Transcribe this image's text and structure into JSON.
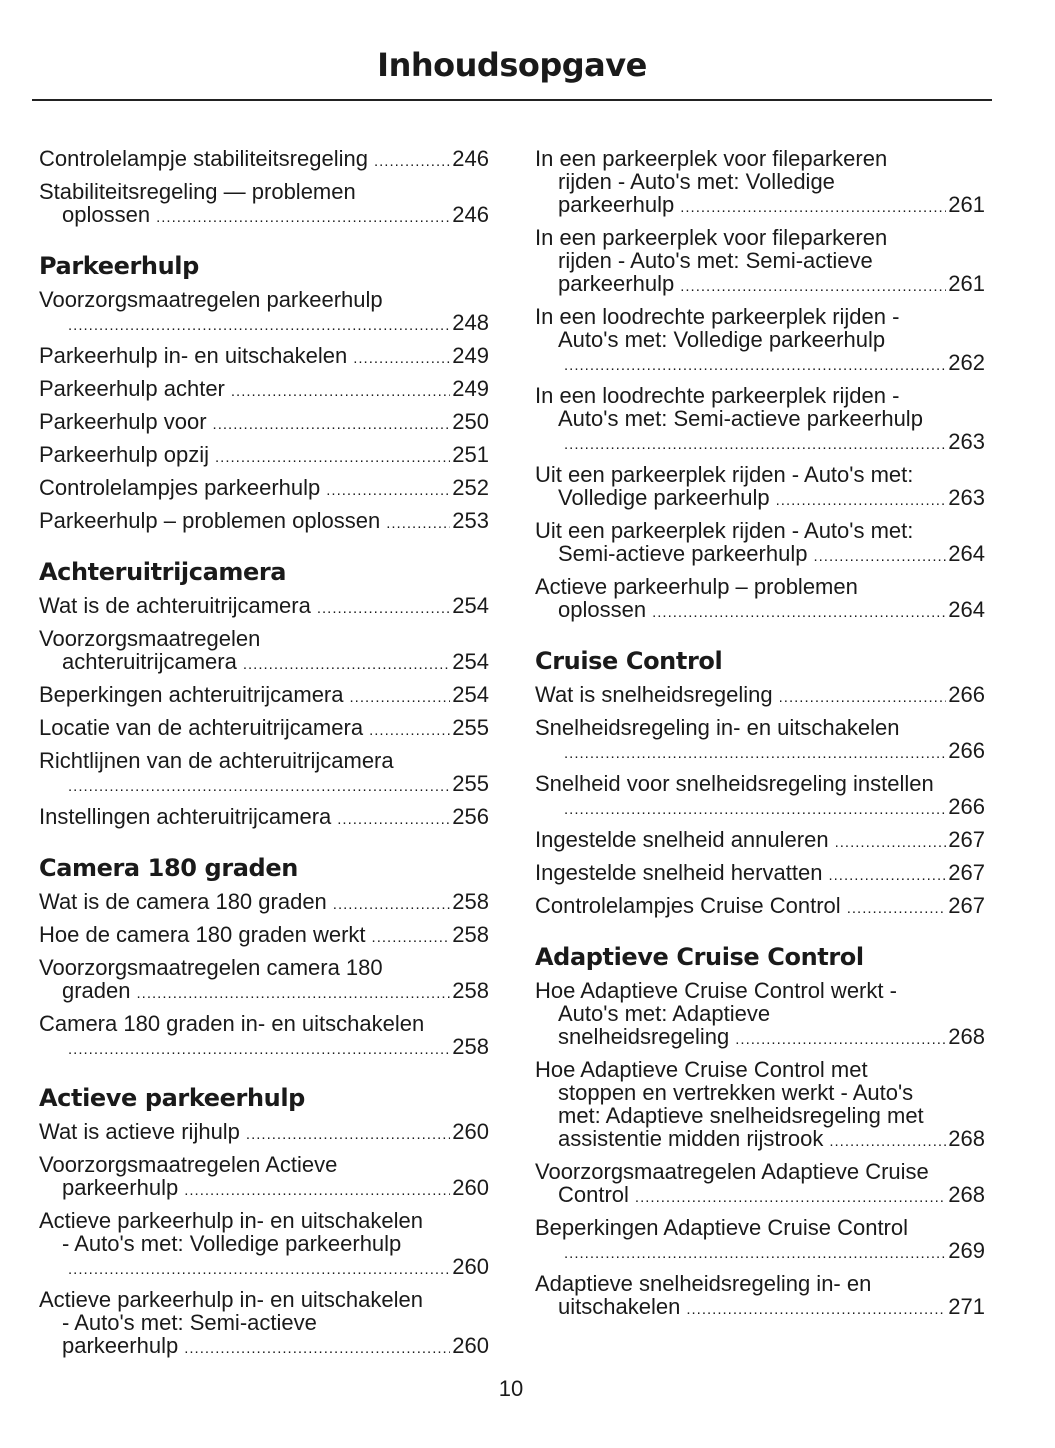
{
  "title": "Inhoudsopgave",
  "page_number": "10",
  "columns": [
    [
      {
        "type": "entry",
        "lines": [
          "Controlelampje stabiliteitsregeling"
        ],
        "page": "246"
      },
      {
        "type": "entry",
        "lines": [
          "Stabiliteitsregeling — problemen",
          "oplossen"
        ],
        "page": "246"
      },
      {
        "type": "heading",
        "text": "Parkeerhulp"
      },
      {
        "type": "entry",
        "lines": [
          "Voorzorgsmaatregelen parkeerhulp",
          ""
        ],
        "page": "248"
      },
      {
        "type": "entry",
        "lines": [
          "Parkeerhulp in- en uitschakelen"
        ],
        "page": "249"
      },
      {
        "type": "entry",
        "lines": [
          "Parkeerhulp achter"
        ],
        "page": "249"
      },
      {
        "type": "entry",
        "lines": [
          "Parkeerhulp voor"
        ],
        "page": "250"
      },
      {
        "type": "entry",
        "lines": [
          "Parkeerhulp opzij"
        ],
        "page": "251"
      },
      {
        "type": "entry",
        "lines": [
          "Controlelampjes parkeerhulp"
        ],
        "page": "252"
      },
      {
        "type": "entry",
        "lines": [
          "Parkeerhulp – problemen oplossen"
        ],
        "page": "253"
      },
      {
        "type": "heading",
        "text": "Achteruitrijcamera"
      },
      {
        "type": "entry",
        "lines": [
          "Wat is de achteruitrijcamera"
        ],
        "page": "254"
      },
      {
        "type": "entry",
        "lines": [
          "Voorzorgsmaatregelen",
          "achteruitrijcamera"
        ],
        "page": "254"
      },
      {
        "type": "entry",
        "lines": [
          "Beperkingen achteruitrijcamera"
        ],
        "page": "254"
      },
      {
        "type": "entry",
        "lines": [
          "Locatie van de achteruitrijcamera"
        ],
        "page": "255"
      },
      {
        "type": "entry",
        "lines": [
          "Richtlijnen van de achteruitrijcamera",
          ""
        ],
        "page": "255"
      },
      {
        "type": "entry",
        "lines": [
          "Instellingen achteruitrijcamera"
        ],
        "page": "256"
      },
      {
        "type": "heading",
        "text": "Camera 180 graden"
      },
      {
        "type": "entry",
        "lines": [
          "Wat is de camera 180 graden"
        ],
        "page": "258"
      },
      {
        "type": "entry",
        "lines": [
          "Hoe de camera 180 graden werkt"
        ],
        "page": "258"
      },
      {
        "type": "entry",
        "lines": [
          "Voorzorgsmaatregelen camera 180",
          "graden"
        ],
        "page": "258"
      },
      {
        "type": "entry",
        "lines": [
          "Camera 180 graden in- en uitschakelen",
          ""
        ],
        "page": "258"
      },
      {
        "type": "heading",
        "text": "Actieve parkeerhulp"
      },
      {
        "type": "entry",
        "lines": [
          "Wat is actieve rijhulp"
        ],
        "page": "260"
      },
      {
        "type": "entry",
        "lines": [
          "Voorzorgsmaatregelen Actieve",
          "parkeerhulp"
        ],
        "page": "260"
      },
      {
        "type": "entry",
        "lines": [
          "Actieve parkeerhulp in- en uitschakelen",
          "- Auto's met: Volledige parkeerhulp",
          ""
        ],
        "page": "260"
      },
      {
        "type": "entry",
        "lines": [
          "Actieve parkeerhulp in- en uitschakelen",
          "- Auto's met: Semi-actieve",
          "parkeerhulp"
        ],
        "page": "260"
      }
    ],
    [
      {
        "type": "entry",
        "lines": [
          "In een parkeerplek voor fileparkeren",
          "rijden - Auto's met: Volledige",
          "parkeerhulp"
        ],
        "page": "261"
      },
      {
        "type": "entry",
        "lines": [
          "In een parkeerplek voor fileparkeren",
          "rijden - Auto's met: Semi-actieve",
          "parkeerhulp"
        ],
        "page": "261"
      },
      {
        "type": "entry",
        "lines": [
          "In een loodrechte parkeerplek rijden -",
          "Auto's met: Volledige parkeerhulp",
          ""
        ],
        "page": "262"
      },
      {
        "type": "entry",
        "lines": [
          "In een loodrechte parkeerplek rijden -",
          "Auto's met: Semi-actieve parkeerhulp",
          ""
        ],
        "page": "263"
      },
      {
        "type": "entry",
        "lines": [
          "Uit een parkeerplek rijden - Auto's met:",
          "Volledige parkeerhulp"
        ],
        "page": "263"
      },
      {
        "type": "entry",
        "lines": [
          "Uit een parkeerplek rijden - Auto's met:",
          "Semi-actieve parkeerhulp"
        ],
        "page": "264"
      },
      {
        "type": "entry",
        "lines": [
          "Actieve parkeerhulp – problemen",
          "oplossen"
        ],
        "page": "264"
      },
      {
        "type": "heading",
        "text": "Cruise Control"
      },
      {
        "type": "entry",
        "lines": [
          "Wat is snelheidsregeling"
        ],
        "page": "266"
      },
      {
        "type": "entry",
        "lines": [
          "Snelheidsregeling in- en uitschakelen",
          ""
        ],
        "page": "266"
      },
      {
        "type": "entry",
        "lines": [
          "Snelheid voor snelheidsregeling instellen",
          ""
        ],
        "page": "266"
      },
      {
        "type": "entry",
        "lines": [
          "Ingestelde snelheid annuleren"
        ],
        "page": "267"
      },
      {
        "type": "entry",
        "lines": [
          "Ingestelde snelheid hervatten"
        ],
        "page": "267"
      },
      {
        "type": "entry",
        "lines": [
          "Controlelampjes Cruise Control"
        ],
        "page": "267"
      },
      {
        "type": "heading",
        "text": "Adaptieve Cruise Control"
      },
      {
        "type": "entry",
        "lines": [
          "Hoe Adaptieve Cruise Control werkt -",
          "Auto's met: Adaptieve",
          "snelheidsregeling"
        ],
        "page": "268"
      },
      {
        "type": "entry",
        "lines": [
          "Hoe Adaptieve Cruise Control met",
          "stoppen en vertrekken werkt - Auto's",
          "met: Adaptieve snelheidsregeling met",
          "assistentie midden rijstrook"
        ],
        "page": "268"
      },
      {
        "type": "entry",
        "lines": [
          "Voorzorgsmaatregelen Adaptieve Cruise",
          "Control"
        ],
        "page": "268"
      },
      {
        "type": "entry",
        "lines": [
          "Beperkingen Adaptieve Cruise Control",
          ""
        ],
        "page": "269"
      },
      {
        "type": "entry",
        "lines": [
          "Adaptieve snelheidsregeling in- en",
          "uitschakelen"
        ],
        "page": "271"
      }
    ]
  ]
}
